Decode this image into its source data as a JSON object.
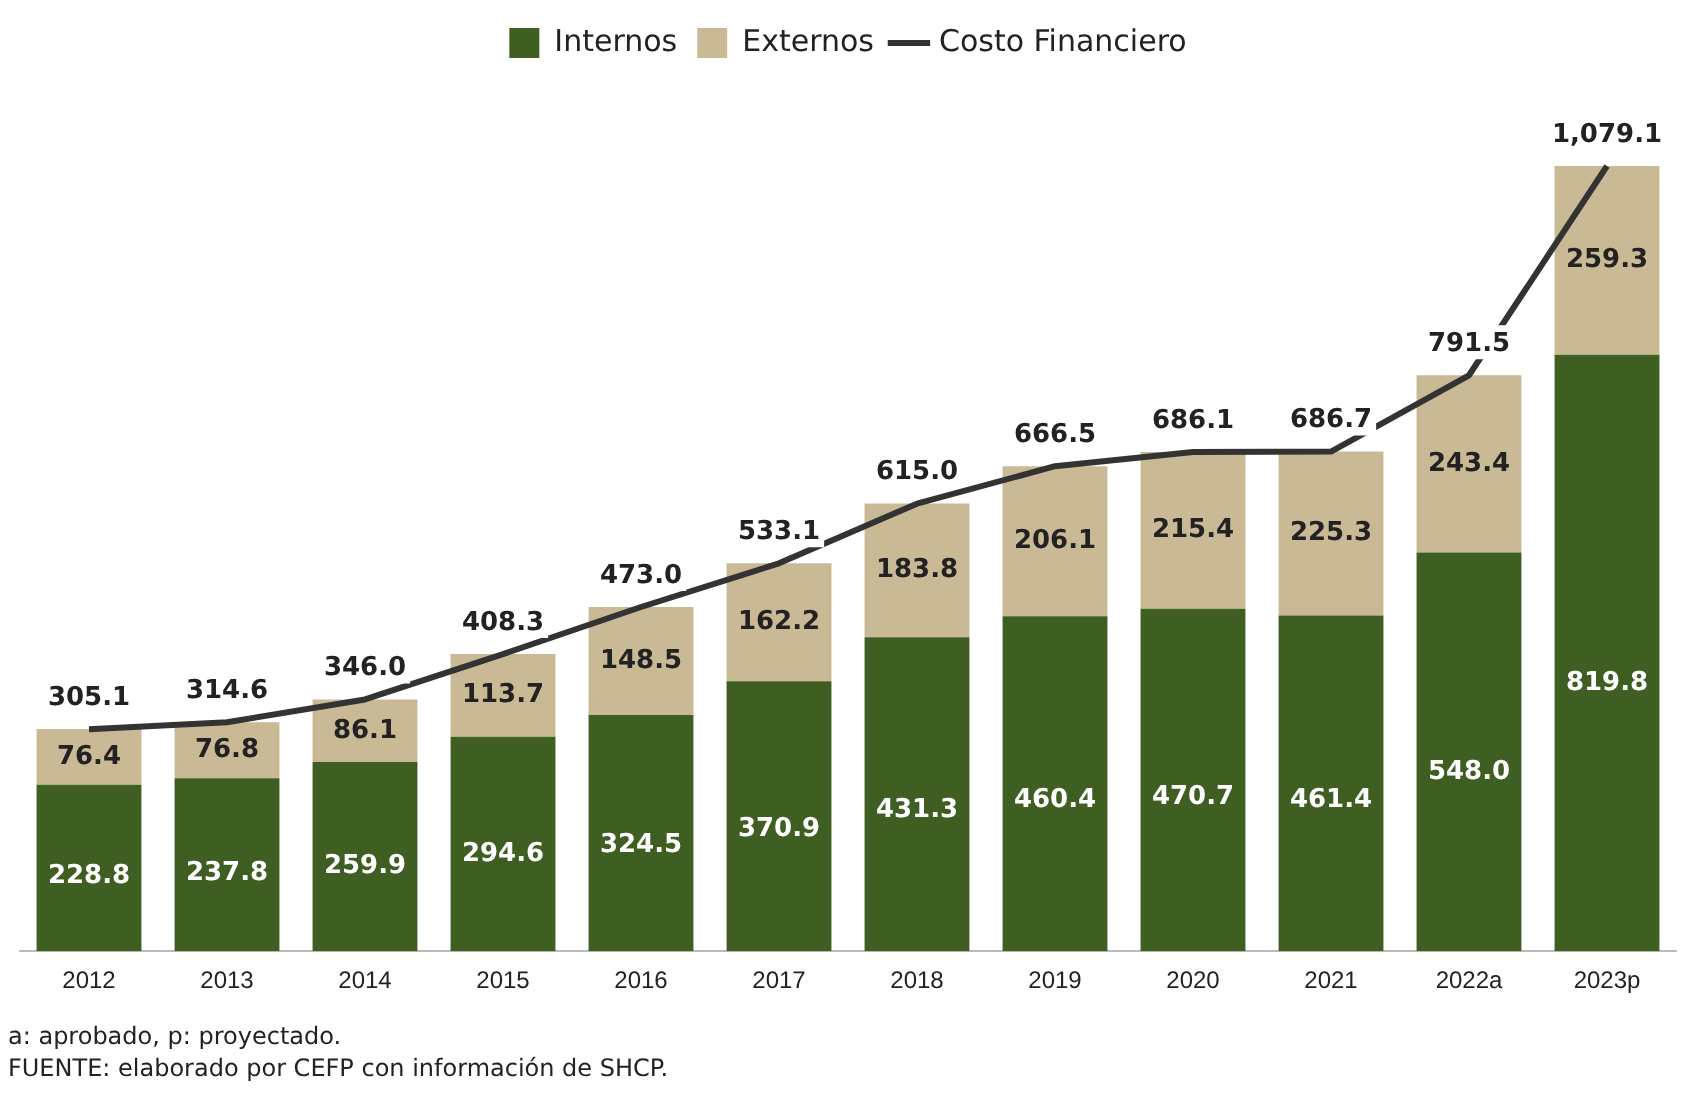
{
  "chart_data": {
    "type": "bar",
    "stacked": true,
    "categories": [
      "2012",
      "2013",
      "2014",
      "2015",
      "2016",
      "2017",
      "2018",
      "2019",
      "2020",
      "2021",
      "2022a",
      "2023p"
    ],
    "series": [
      {
        "name": "Internos",
        "color": "#3f5f22",
        "values": [
          228.8,
          237.8,
          259.9,
          294.6,
          324.5,
          370.9,
          431.3,
          460.4,
          470.7,
          461.4,
          548.0,
          819.8
        ],
        "value_labels": [
          "228.8",
          "237.8",
          "259.9",
          "294.6",
          "324.5",
          "370.9",
          "431.3",
          "460.4",
          "470.7",
          "461.4",
          "548.0",
          "819.8"
        ]
      },
      {
        "name": "Externos",
        "color": "#c9b995",
        "values": [
          76.4,
          76.8,
          86.1,
          113.7,
          148.5,
          162.2,
          183.8,
          206.1,
          215.4,
          225.3,
          243.4,
          259.3
        ],
        "value_labels": [
          "76.4",
          "76.8",
          "86.1",
          "113.7",
          "148.5",
          "162.2",
          "183.8",
          "206.1",
          "215.4",
          "225.3",
          "243.4",
          "259.3"
        ]
      },
      {
        "name": "Costo Financiero",
        "type": "line",
        "color": "#333333",
        "values": [
          305.1,
          314.6,
          346.0,
          408.3,
          473.0,
          533.1,
          615.0,
          666.5,
          686.1,
          686.7,
          791.5,
          1079.1
        ],
        "value_labels": [
          "305.1",
          "314.6",
          "346.0",
          "408.3",
          "473.0",
          "533.1",
          "615.0",
          "666.5",
          "686.1",
          "686.7",
          "791.5",
          "1,079.1"
        ]
      }
    ],
    "data_labels": true,
    "legend": "top",
    "grid": false,
    "tick_labels": "x",
    "marker": "none",
    "annotations": [
      "a: aprobado, p: proyectado.",
      "FUENTE: elaborado por CEFP con información de SHCP."
    ]
  }
}
